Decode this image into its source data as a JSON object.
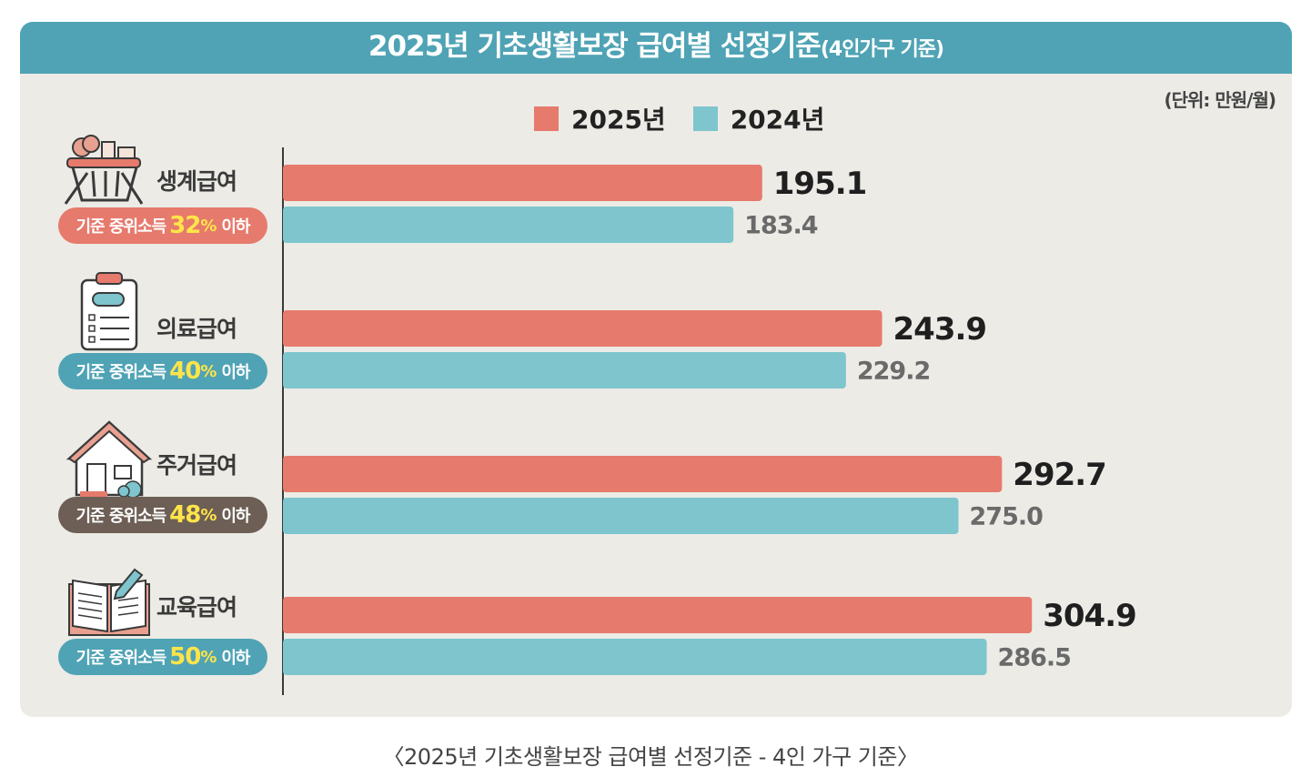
{
  "header": {
    "title": "2025년 기초생활보장 급여별 선정기준",
    "subtitle": "(4인가구 기준)"
  },
  "unit": "(단위: 만원/월)",
  "caption": "〈2025년 기초생활보장 급여별 선정기준 - 4인 가구 기준〉",
  "colors": {
    "series_2025": "#e67a6c",
    "series_2024": "#7ec5cd",
    "header": "#4fa3b5"
  },
  "categories_info": [
    {
      "name": "생계급여",
      "icon": "basket-icon",
      "pill_prefix": "기준 중위소득",
      "pill_pct": "32",
      "pill_pct_sign": "%",
      "pill_suffix": "이하",
      "pill_color": "#e67a6c"
    },
    {
      "name": "의료급여",
      "icon": "clipboard-icon",
      "pill_prefix": "기준 중위소득",
      "pill_pct": "40",
      "pill_pct_sign": "%",
      "pill_suffix": "이하",
      "pill_color": "#4fa3b5"
    },
    {
      "name": "주거급여",
      "icon": "house-icon",
      "pill_prefix": "기준 중위소득",
      "pill_pct": "48",
      "pill_pct_sign": "%",
      "pill_suffix": "이하",
      "pill_color": "#6d5f55"
    },
    {
      "name": "교육급여",
      "icon": "book-icon",
      "pill_prefix": "기준 중위소득",
      "pill_pct": "50",
      "pill_pct_sign": "%",
      "pill_suffix": "이하",
      "pill_color": "#4fa3b5"
    }
  ],
  "chart_data": {
    "type": "bar",
    "orientation": "horizontal",
    "title": "2025년 기초생활보장 급여별 선정기준(4인가구 기준)",
    "unit": "(단위: 만원/월)",
    "categories": [
      "생계급여",
      "의료급여",
      "주거급여",
      "교육급여"
    ],
    "series": [
      {
        "name": "2025년",
        "values": [
          195.1,
          243.9,
          292.7,
          304.9
        ],
        "labels": [
          "195.1",
          "243.9",
          "292.7",
          "304.9"
        ]
      },
      {
        "name": "2024년",
        "values": [
          183.4,
          229.2,
          275.0,
          286.5
        ],
        "labels": [
          "183.4",
          "229.2",
          "275.0",
          "286.5"
        ]
      }
    ],
    "xlim": [
      0,
      350
    ],
    "legend_position": "top-center",
    "grid": false
  }
}
